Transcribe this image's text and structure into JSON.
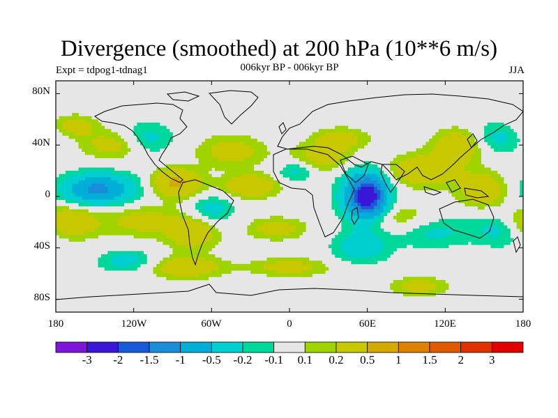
{
  "title": "Divergence (smoothed) at 200 hPa (10**6 m/s)",
  "experiment": "Expt = tdpog1-tdnag1",
  "subtitle": "006kyr BP - 006kyr BP",
  "season": "JJA",
  "lat_labels": [
    "80N",
    "40N",
    "0",
    "40S",
    "80S"
  ],
  "lon_labels": [
    "180",
    "120W",
    "60W",
    "0",
    "60E",
    "120E",
    "180"
  ],
  "colorbar": {
    "labels": [
      "-3",
      "-2",
      "-1.5",
      "-1",
      "-0.5",
      "-0.2",
      "-0.1",
      "0.1",
      "0.2",
      "0.5",
      "1",
      "1.5",
      "2",
      "3"
    ],
    "colors": [
      "#7d16d8",
      "#3a16d6",
      "#1a5ad8",
      "#1a8cd8",
      "#00aed8",
      "#00cfd0",
      "#00d79a",
      "#e6e6e6",
      "#a0d400",
      "#c8c800",
      "#d4aa00",
      "#dc8200",
      "#e05a00",
      "#e03200",
      "#e00000"
    ]
  },
  "chart_data": {
    "type": "heatmap",
    "projection": "cylindrical-equidistant",
    "variable": "200 hPa divergence difference (smoothed)",
    "units": "10**6 m/s",
    "lon_range": [
      -180,
      180
    ],
    "lat_range": [
      -90,
      90
    ],
    "levels": [
      -3,
      -2,
      -1.5,
      -1,
      -0.5,
      -0.2,
      -0.1,
      0.1,
      0.2,
      0.5,
      1,
      1.5,
      2,
      3
    ],
    "features": [
      {
        "lon": 60,
        "lat": 0,
        "value": -2.2,
        "sx": 8,
        "sy": 9
      },
      {
        "lon": 58,
        "lat": 0,
        "value": -0.6,
        "sx": 14,
        "sy": 16
      },
      {
        "lon": 102,
        "lat": 20,
        "value": 0.4,
        "sx": 20,
        "sy": 9
      },
      {
        "lon": 110,
        "lat": -25,
        "value": -0.3,
        "sx": 22,
        "sy": 10
      },
      {
        "lon": 86,
        "lat": -17,
        "value": 0.3,
        "sx": 24,
        "sy": 8
      },
      {
        "lon": 150,
        "lat": 5,
        "value": 0.4,
        "sx": 14,
        "sy": 10
      },
      {
        "lon": 165,
        "lat": -25,
        "value": -0.3,
        "sx": 15,
        "sy": 10
      },
      {
        "lon": 132,
        "lat": 40,
        "value": 0.4,
        "sx": 15,
        "sy": 9
      },
      {
        "lon": 158,
        "lat": 45,
        "value": -0.3,
        "sx": 14,
        "sy": 9
      },
      {
        "lon": 100,
        "lat": -70,
        "value": 0.3,
        "sx": 15,
        "sy": 5
      },
      {
        "lon": -145,
        "lat": 5,
        "value": -0.4,
        "sx": 28,
        "sy": 10
      },
      {
        "lon": -148,
        "lat": 6,
        "value": -0.8,
        "sx": 12,
        "sy": 6
      },
      {
        "lon": -172,
        "lat": -20,
        "value": 0.5,
        "sx": 16,
        "sy": 9
      },
      {
        "lon": -115,
        "lat": -18,
        "value": 0.3,
        "sx": 20,
        "sy": 9
      },
      {
        "lon": -135,
        "lat": 40,
        "value": 0.3,
        "sx": 18,
        "sy": 8
      },
      {
        "lon": -110,
        "lat": 45,
        "value": -0.3,
        "sx": 14,
        "sy": 9
      },
      {
        "lon": -165,
        "lat": 55,
        "value": 0.3,
        "sx": 12,
        "sy": 6
      },
      {
        "lon": -88,
        "lat": 10,
        "value": 0.6,
        "sx": 14,
        "sy": 8
      },
      {
        "lon": -75,
        "lat": -28,
        "value": 0.4,
        "sx": 14,
        "sy": 9
      },
      {
        "lon": -60,
        "lat": -10,
        "value": -0.3,
        "sx": 12,
        "sy": 8
      },
      {
        "lon": -80,
        "lat": -55,
        "value": 0.4,
        "sx": 20,
        "sy": 6
      },
      {
        "lon": -45,
        "lat": 35,
        "value": 0.3,
        "sx": 18,
        "sy": 9
      },
      {
        "lon": -30,
        "lat": 8,
        "value": 0.5,
        "sx": 14,
        "sy": 6
      },
      {
        "lon": -10,
        "lat": -25,
        "value": 0.3,
        "sx": 16,
        "sy": 6
      },
      {
        "lon": 5,
        "lat": 20,
        "value": -0.3,
        "sx": 10,
        "sy": 6
      },
      {
        "lon": 25,
        "lat": 30,
        "value": 0.3,
        "sx": 18,
        "sy": 8
      },
      {
        "lon": 0,
        "lat": -55,
        "value": 0.3,
        "sx": 22,
        "sy": 5
      },
      {
        "lon": 55,
        "lat": -40,
        "value": -0.3,
        "sx": 16,
        "sy": 9
      },
      {
        "lon": 40,
        "lat": 45,
        "value": 0.3,
        "sx": 15,
        "sy": 6
      },
      {
        "lon": -125,
        "lat": -50,
        "value": -0.3,
        "sx": 16,
        "sy": 6
      }
    ]
  }
}
